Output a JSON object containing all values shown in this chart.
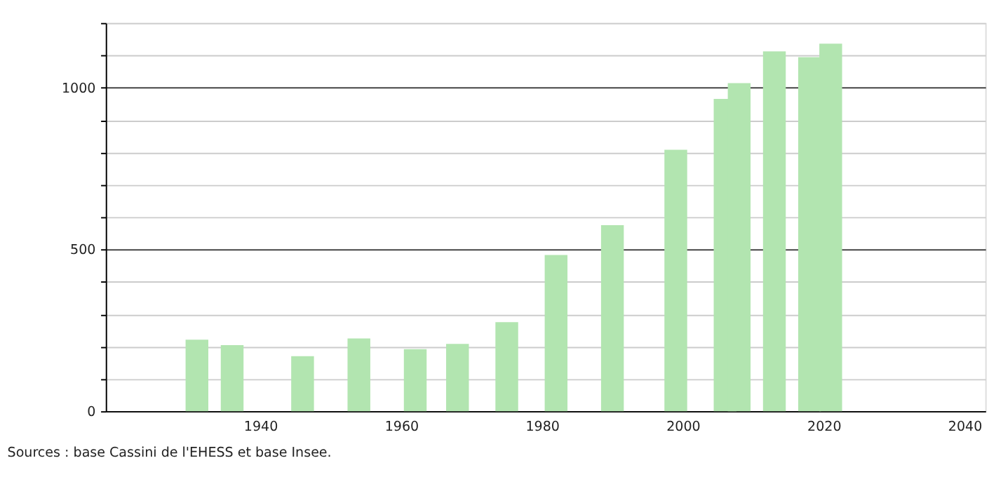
{
  "chart_data": {
    "type": "bar",
    "x": [
      1931,
      1936,
      1946,
      1954,
      1962,
      1968,
      1975,
      1982,
      1990,
      1999,
      2006,
      2008,
      2013,
      2018,
      2021
    ],
    "values": [
      221,
      204,
      170,
      225,
      192,
      208,
      275,
      483,
      575,
      808,
      965,
      1014,
      1112,
      1094,
      1136
    ],
    "color": "#b2e5b0",
    "xlim": [
      1919,
      2042
    ],
    "xticks": [
      1940,
      1960,
      1980,
      2000,
      2020,
      2040
    ],
    "ylim": [
      0,
      1200
    ],
    "yticks": [
      0,
      {
        "value": 100,
        "label": null
      },
      {
        "value": 200,
        "label": null
      },
      {
        "value": 300,
        "label": null
      },
      {
        "value": 400,
        "label": null
      },
      500,
      {
        "value": 600,
        "label": null
      },
      {
        "value": 700,
        "label": null
      },
      {
        "value": 800,
        "label": null
      },
      {
        "value": 900,
        "label": null
      },
      1000,
      {
        "value": 1100,
        "label": null
      },
      {
        "value": 1200,
        "label": null
      }
    ],
    "grid": "y",
    "annotations": [
      "Sources : base Cassini de l'EHESS et base Insee."
    ]
  }
}
